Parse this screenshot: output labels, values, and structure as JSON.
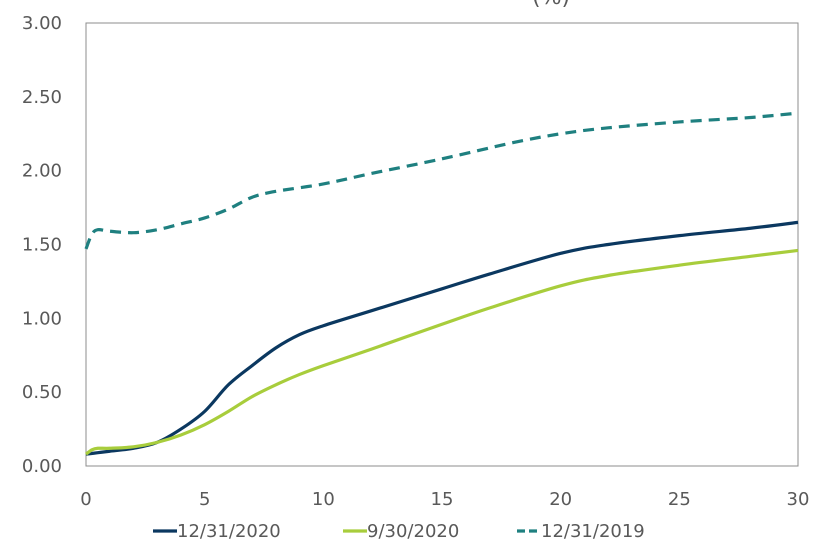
{
  "chart_data": {
    "type": "line",
    "title": "",
    "xlabel": "",
    "ylabel": "",
    "xlim": [
      0,
      30
    ],
    "ylim": [
      0,
      3
    ],
    "x_ticks": [
      "0",
      "5",
      "10",
      "15",
      "20",
      "25",
      "30"
    ],
    "y_ticks": [
      "0.00",
      "0.50",
      "1.00",
      "1.50",
      "2.00",
      "2.50",
      "3.00"
    ],
    "grid": false,
    "legend_position": "bottom",
    "series": [
      {
        "name": "12/31/2020",
        "color": "#0b3860",
        "dash": "solid",
        "points": [
          [
            0,
            0.08
          ],
          [
            0.5,
            0.09
          ],
          [
            1,
            0.1
          ],
          [
            2,
            0.12
          ],
          [
            3,
            0.16
          ],
          [
            4,
            0.25
          ],
          [
            5,
            0.37
          ],
          [
            6,
            0.55
          ],
          [
            7,
            0.68
          ],
          [
            8,
            0.8
          ],
          [
            9,
            0.89
          ],
          [
            10,
            0.95
          ],
          [
            12,
            1.05
          ],
          [
            15,
            1.2
          ],
          [
            17,
            1.3
          ],
          [
            20,
            1.44
          ],
          [
            22,
            1.5
          ],
          [
            25,
            1.56
          ],
          [
            28,
            1.61
          ],
          [
            30,
            1.65
          ]
        ]
      },
      {
        "name": "9/30/2020",
        "color": "#a8cd3c",
        "dash": "solid",
        "points": [
          [
            0,
            0.08
          ],
          [
            0.25,
            0.11
          ],
          [
            0.5,
            0.12
          ],
          [
            1,
            0.12
          ],
          [
            2,
            0.13
          ],
          [
            3,
            0.16
          ],
          [
            4,
            0.21
          ],
          [
            5,
            0.28
          ],
          [
            6,
            0.37
          ],
          [
            7,
            0.47
          ],
          [
            8,
            0.55
          ],
          [
            9,
            0.62
          ],
          [
            10,
            0.68
          ],
          [
            12,
            0.79
          ],
          [
            15,
            0.96
          ],
          [
            17,
            1.07
          ],
          [
            20,
            1.22
          ],
          [
            22,
            1.29
          ],
          [
            25,
            1.36
          ],
          [
            28,
            1.42
          ],
          [
            30,
            1.46
          ]
        ]
      },
      {
        "name": "12/31/2019",
        "color": "#1f8080",
        "dash": "dashed",
        "points": [
          [
            0,
            1.47
          ],
          [
            0.25,
            1.57
          ],
          [
            0.5,
            1.6
          ],
          [
            1,
            1.59
          ],
          [
            2,
            1.58
          ],
          [
            3,
            1.6
          ],
          [
            4,
            1.64
          ],
          [
            5,
            1.68
          ],
          [
            6,
            1.74
          ],
          [
            7,
            1.82
          ],
          [
            8,
            1.86
          ],
          [
            10,
            1.91
          ],
          [
            12,
            1.98
          ],
          [
            15,
            2.08
          ],
          [
            18,
            2.19
          ],
          [
            20,
            2.25
          ],
          [
            22,
            2.29
          ],
          [
            25,
            2.33
          ],
          [
            28,
            2.36
          ],
          [
            30,
            2.39
          ]
        ]
      }
    ]
  }
}
